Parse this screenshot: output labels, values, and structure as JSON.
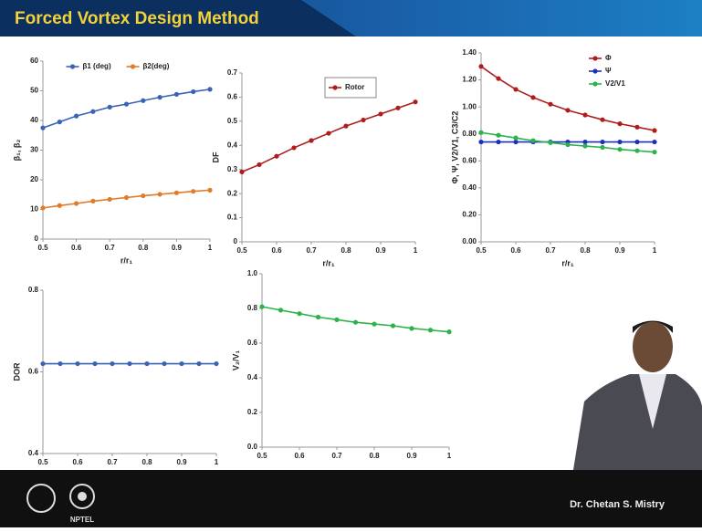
{
  "header": {
    "title": "Forced Vortex Design Method"
  },
  "footer": {
    "presenter": "Dr. Chetan S. Mistry",
    "logo_text": "NPTEL"
  },
  "chart_data": [
    {
      "type": "line",
      "x_label": "r/r₁",
      "y_label": "β₁, β₂",
      "legend": "upper center",
      "x": [
        0.5,
        0.55,
        0.6,
        0.65,
        0.7,
        0.75,
        0.8,
        0.85,
        0.9,
        0.95,
        1
      ],
      "series": [
        {
          "name": "β1 (deg)",
          "color": "#3a63b8",
          "values": [
            37.5,
            39.5,
            41.5,
            43,
            44.5,
            45.5,
            46.7,
            47.8,
            48.8,
            49.7,
            50.5
          ]
        },
        {
          "name": "β2(deg)",
          "color": "#e07b2a",
          "values": [
            10.5,
            11.3,
            12,
            12.8,
            13.4,
            14,
            14.6,
            15.1,
            15.6,
            16.1,
            16.5
          ]
        }
      ],
      "xlim": [
        0.5,
        1
      ],
      "xticks": [
        0.5,
        0.6,
        0.7,
        0.8,
        0.9,
        1
      ],
      "ylim": [
        0,
        60
      ],
      "yticks": [
        0,
        10,
        20,
        30,
        40,
        50,
        60
      ]
    },
    {
      "type": "line",
      "x_label": "r/r₁",
      "y_label": "DF",
      "legend": "upper right",
      "x": [
        0.5,
        0.55,
        0.6,
        0.65,
        0.7,
        0.75,
        0.8,
        0.85,
        0.9,
        0.95,
        1
      ],
      "series": [
        {
          "name": "Rotor",
          "color": "#b01c1c",
          "values": [
            0.29,
            0.32,
            0.355,
            0.39,
            0.42,
            0.45,
            0.48,
            0.505,
            0.53,
            0.555,
            0.58
          ]
        }
      ],
      "xlim": [
        0.5,
        1
      ],
      "xticks": [
        0.5,
        0.6,
        0.7,
        0.8,
        0.9,
        1
      ],
      "ylim": [
        0,
        0.7
      ],
      "yticks": [
        0,
        0.1,
        0.2,
        0.3,
        0.4,
        0.5,
        0.6,
        0.7
      ]
    },
    {
      "type": "line",
      "x_label": "r/r₁",
      "y_label": "Φ, Ψ, V2/V1, C3/C2",
      "legend": "upper right",
      "x": [
        0.5,
        0.55,
        0.6,
        0.65,
        0.7,
        0.75,
        0.8,
        0.85,
        0.9,
        0.95,
        1
      ],
      "series": [
        {
          "name": "Φ",
          "color": "#b01c1c",
          "values": [
            1.3,
            1.21,
            1.13,
            1.07,
            1.02,
            0.975,
            0.94,
            0.905,
            0.875,
            0.85,
            0.825
          ]
        },
        {
          "name": "Ψ",
          "color": "#1c2fc0",
          "values": [
            0.74,
            0.74,
            0.74,
            0.74,
            0.74,
            0.74,
            0.74,
            0.74,
            0.74,
            0.74,
            0.74
          ]
        },
        {
          "name": "V2/V1",
          "color": "#2cb34a",
          "values": [
            0.81,
            0.79,
            0.77,
            0.75,
            0.735,
            0.72,
            0.71,
            0.7,
            0.685,
            0.675,
            0.665
          ]
        }
      ],
      "xlim": [
        0.5,
        1
      ],
      "xticks": [
        0.5,
        0.6,
        0.7,
        0.8,
        0.9,
        1
      ],
      "ylim": [
        0,
        1.4
      ],
      "yticks": [
        {
          "value": 0,
          "label": "0.00"
        },
        {
          "value": 0.2,
          "label": "0.20"
        },
        {
          "value": 0.4,
          "label": "0.40"
        },
        {
          "value": 0.6,
          "label": "0.60"
        },
        {
          "value": 0.8,
          "label": "0.80"
        },
        {
          "value": 1,
          "label": "1.00"
        },
        {
          "value": 1.2,
          "label": "1.20"
        },
        {
          "value": 1.4,
          "label": "1.40"
        }
      ]
    },
    {
      "type": "line",
      "y_label": "DOR",
      "color": "#3a63b8",
      "x": [
        0.5,
        0.55,
        0.6,
        0.65,
        0.7,
        0.75,
        0.8,
        0.85,
        0.9,
        0.95,
        1
      ],
      "values": [
        0.62,
        0.62,
        0.62,
        0.62,
        0.62,
        0.62,
        0.62,
        0.62,
        0.62,
        0.62,
        0.62
      ],
      "xlim": [
        0.5,
        1
      ],
      "xticks": [
        0.5,
        0.6,
        0.7,
        0.8,
        0.9,
        1
      ],
      "ylim": [
        0.4,
        0.8
      ],
      "yticks": [
        0.4,
        0.6,
        0.8
      ]
    },
    {
      "type": "line",
      "y_label": "V₂/V₁",
      "color": "#2cb34a",
      "x": [
        0.5,
        0.55,
        0.6,
        0.65,
        0.7,
        0.75,
        0.8,
        0.85,
        0.9,
        0.95,
        1
      ],
      "values": [
        0.81,
        0.79,
        0.77,
        0.75,
        0.735,
        0.72,
        0.71,
        0.7,
        0.685,
        0.675,
        0.665
      ],
      "xlim": [
        0.5,
        1
      ],
      "xticks": [
        0.5,
        0.6,
        0.7,
        0.8,
        0.9,
        1
      ],
      "ylim": [
        0,
        1
      ],
      "yticks": [
        {
          "value": 0,
          "label": "0.0"
        },
        {
          "value": 0.2,
          "label": "0.2"
        },
        {
          "value": 0.4,
          "label": "0.4"
        },
        {
          "value": 0.6,
          "label": "0.6"
        },
        {
          "value": 0.8,
          "label": "0.8"
        },
        {
          "value": 1,
          "label": "1.0"
        }
      ]
    }
  ]
}
